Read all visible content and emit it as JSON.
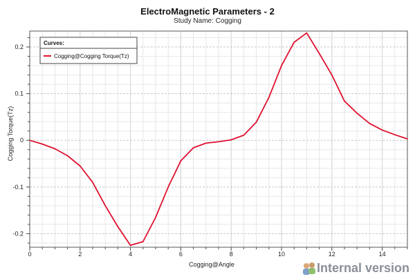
{
  "chart_data": {
    "type": "line",
    "title": "ElectroMagnetic Parameters - 2",
    "subtitle": "Study Name: Cogging",
    "xlabel": "Cogging@Angle",
    "ylabel": "Cogging Torque(Tz)",
    "xlim": [
      0,
      15
    ],
    "ylim": [
      -0.229,
      0.234
    ],
    "xticks": [
      0,
      2,
      4,
      6,
      8,
      10,
      12,
      14
    ],
    "xtick_labels": [
      "0",
      "2",
      "4",
      "6",
      "8",
      "10",
      "12",
      "14"
    ],
    "yticks": [
      -0.2,
      -0.1,
      0,
      0.1,
      0.2
    ],
    "ytick_labels": [
      "-0.2",
      "-0.1",
      "0",
      "0.1",
      "0.2"
    ],
    "grid": true,
    "legend": {
      "title": "Curves:",
      "placement": "top-left"
    },
    "series": [
      {
        "name": "Cogging@Cogging Torque(Tz)",
        "color": "#e0102f",
        "x": [
          0,
          0.5,
          1,
          1.5,
          2,
          2.5,
          3,
          3.5,
          4,
          4.5,
          5,
          5.5,
          6,
          6.5,
          7,
          7.5,
          8,
          8.5,
          9,
          9.5,
          10,
          10.5,
          11,
          11.5,
          12,
          12.5,
          13,
          13.5,
          14,
          14.5,
          15
        ],
        "y": [
          0,
          -0.008,
          -0.018,
          -0.033,
          -0.055,
          -0.09,
          -0.14,
          -0.185,
          -0.225,
          -0.217,
          -0.165,
          -0.1,
          -0.044,
          -0.016,
          -0.006,
          -0.003,
          0.001,
          0.011,
          0.039,
          0.092,
          0.16,
          0.21,
          0.23,
          0.186,
          0.14,
          0.084,
          0.058,
          0.036,
          0.022,
          0.012,
          0.003
        ]
      }
    ]
  },
  "watermark": "Internal version"
}
